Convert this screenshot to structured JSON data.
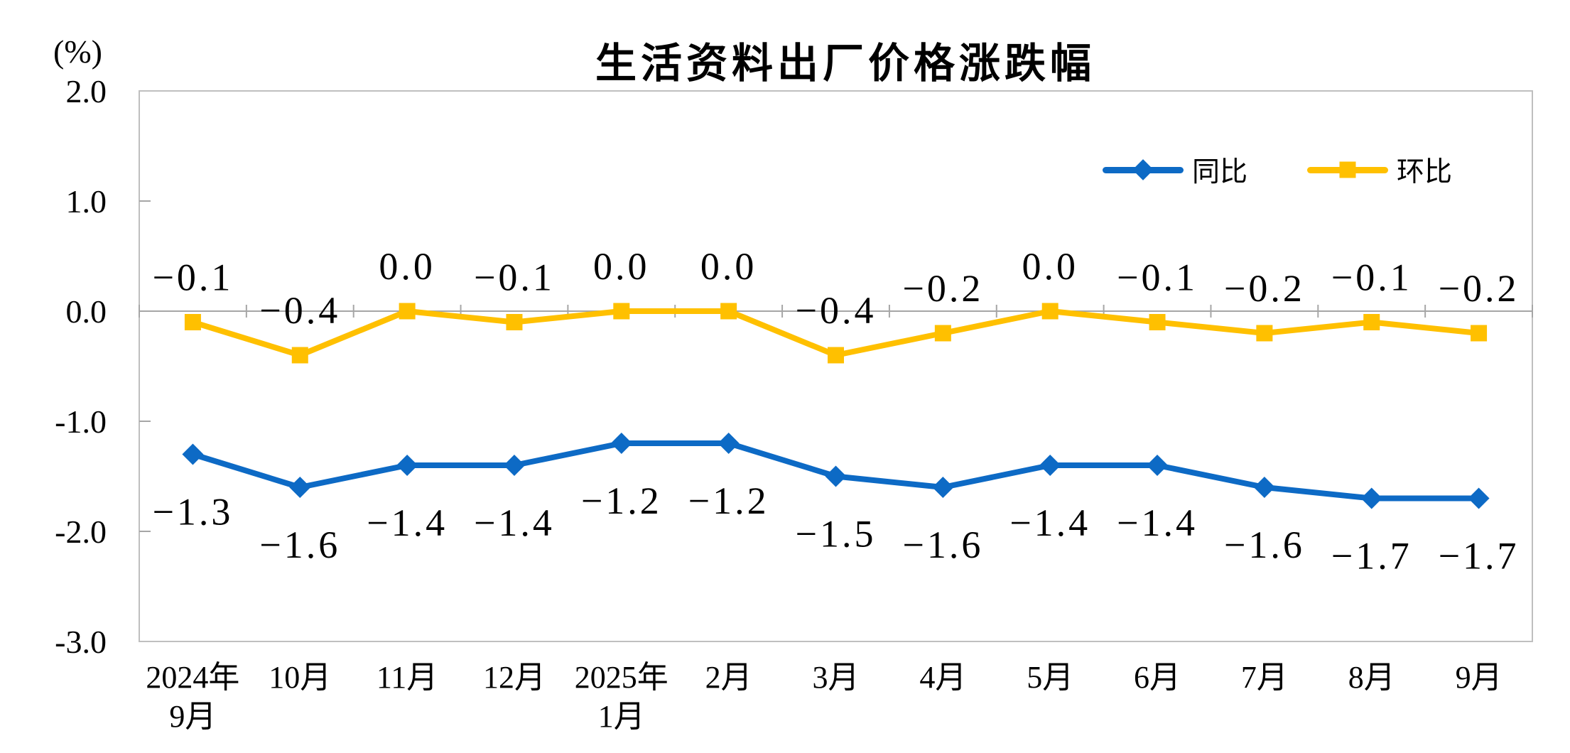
{
  "chart": {
    "title": "生活资料出厂价格涨跌幅",
    "unit_label": "(%)"
  },
  "chart_data": {
    "type": "line",
    "title": "生活资料出厂价格涨跌幅",
    "ylabel": "(%)",
    "xlabel": "",
    "ylim": [
      -3.0,
      2.0
    ],
    "grid": "zero-line-only",
    "legend_position": "top-right-inside",
    "y_ticks": [
      {
        "value": 2.0,
        "label": "2.0"
      },
      {
        "value": 1.0,
        "label": "1.0"
      },
      {
        "value": 0.0,
        "label": "0.0"
      },
      {
        "value": -1.0,
        "label": "-1.0"
      },
      {
        "value": -2.0,
        "label": "-2.0"
      },
      {
        "value": -3.0,
        "label": "-3.0"
      }
    ],
    "categories": [
      [
        "2024年",
        "9月"
      ],
      [
        "10月"
      ],
      [
        "11月"
      ],
      [
        "12月"
      ],
      [
        "2025年",
        "1月"
      ],
      [
        "2月"
      ],
      [
        "3月"
      ],
      [
        "4月"
      ],
      [
        "5月"
      ],
      [
        "6月"
      ],
      [
        "7月"
      ],
      [
        "8月"
      ],
      [
        "9月"
      ]
    ],
    "series": [
      {
        "name": "同比",
        "color": "#0d6ac5",
        "marker": "diamond",
        "label_side": "below",
        "values": [
          -1.3,
          -1.6,
          -1.4,
          -1.4,
          -1.2,
          -1.2,
          -1.5,
          -1.6,
          -1.4,
          -1.4,
          -1.6,
          -1.7,
          -1.7
        ],
        "labels": [
          "−1.3",
          "−1.6",
          "−1.4",
          "−1.4",
          "−1.2",
          "−1.2",
          "−1.5",
          "−1.6",
          "−1.4",
          "−1.4",
          "−1.6",
          "−1.7",
          "−1.7"
        ]
      },
      {
        "name": "环比",
        "color": "#ffc000",
        "marker": "square",
        "label_side": "above",
        "values": [
          -0.1,
          -0.4,
          0.0,
          -0.1,
          0.0,
          0.0,
          -0.4,
          -0.2,
          0.0,
          -0.1,
          -0.2,
          -0.1,
          -0.2
        ],
        "labels": [
          "−0.1",
          "−0.4",
          "0.0",
          "−0.1",
          "0.0",
          "0.0",
          "−0.4",
          "−0.2",
          "0.0",
          "−0.1",
          "−0.2",
          "−0.1",
          "−0.2"
        ]
      }
    ]
  },
  "colors": {
    "plot_border": "#bfbfbf",
    "axis_line": "#a6a6a6",
    "text": "#000000",
    "background": "#ffffff"
  }
}
